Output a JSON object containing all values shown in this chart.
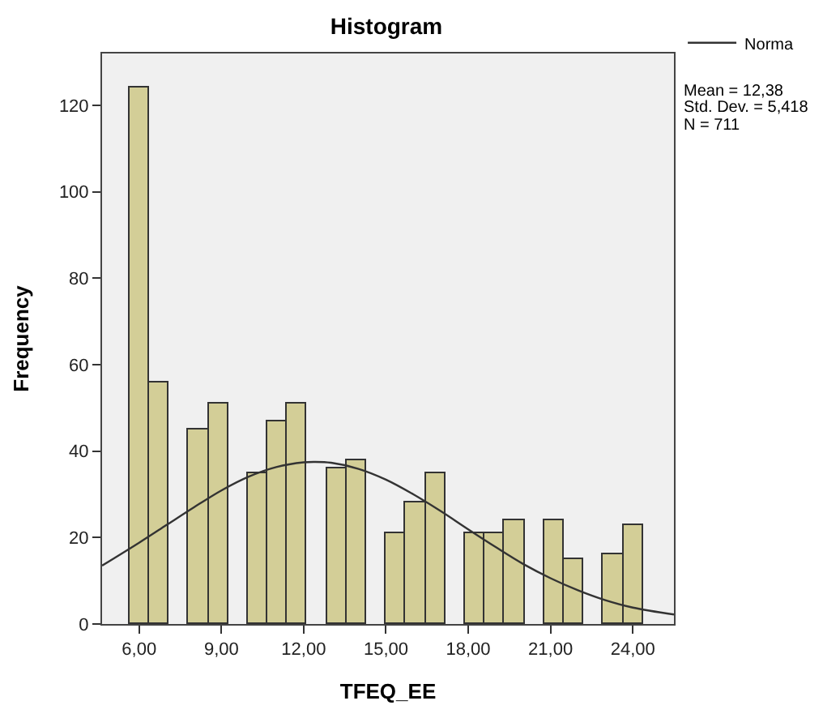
{
  "chart_data": {
    "type": "histogram",
    "title": "Histogram",
    "xlabel": "TFEQ_EE",
    "ylabel": "Frequency",
    "bins": [
      5.64,
      6.36,
      7.08,
      7.8,
      8.52,
      9.24,
      9.96,
      10.68,
      11.4,
      12.12,
      12.84,
      13.56,
      14.28,
      15,
      15.72,
      16.44,
      17.16,
      17.88,
      18.6,
      19.32,
      20.04,
      20.76,
      21.48,
      22.2,
      22.92,
      23.64,
      24.36
    ],
    "values": [
      124,
      56,
      0,
      45,
      51,
      0,
      35,
      47,
      51,
      0,
      36,
      38,
      0,
      21,
      28,
      35,
      0,
      21,
      21,
      24,
      0,
      24,
      15,
      0,
      16,
      23
    ],
    "color": "#d3ce97",
    "series": [
      {
        "type": "line",
        "name": "Norma",
        "color": "#333333",
        "x": [
          4.65,
          6,
          7,
          8,
          9,
          10,
          11,
          12,
          12.4,
          13,
          14,
          15,
          16,
          17,
          18,
          19,
          20,
          21,
          22,
          23,
          24,
          25.5
        ],
        "values": [
          13.5,
          18.8,
          22.9,
          27,
          30.9,
          34.1,
          36.3,
          37.4,
          37.5,
          37.3,
          35.9,
          33.4,
          30,
          26.1,
          21.9,
          17.8,
          13.9,
          10.6,
          7.8,
          5.5,
          3.8,
          2.2
        ]
      }
    ],
    "xlim": [
      4.65,
      25.5
    ],
    "ylim": [
      0,
      132
    ],
    "xticks": [
      {
        "value": 6,
        "label": "6,00"
      },
      {
        "value": 9,
        "label": "9,00"
      },
      {
        "value": 12,
        "label": "12,00"
      },
      {
        "value": 15,
        "label": "15,00"
      },
      {
        "value": 18,
        "label": "18,00"
      },
      {
        "value": 21,
        "label": "21,00"
      },
      {
        "value": 24,
        "label": "24,00"
      }
    ],
    "yticks": [
      0,
      20,
      40,
      60,
      80,
      100,
      120
    ],
    "annotations": [
      "Mean = 12,38",
      "Std. Dev. = 5,418",
      "N = 711"
    ],
    "grid": false,
    "legend": "top right"
  }
}
